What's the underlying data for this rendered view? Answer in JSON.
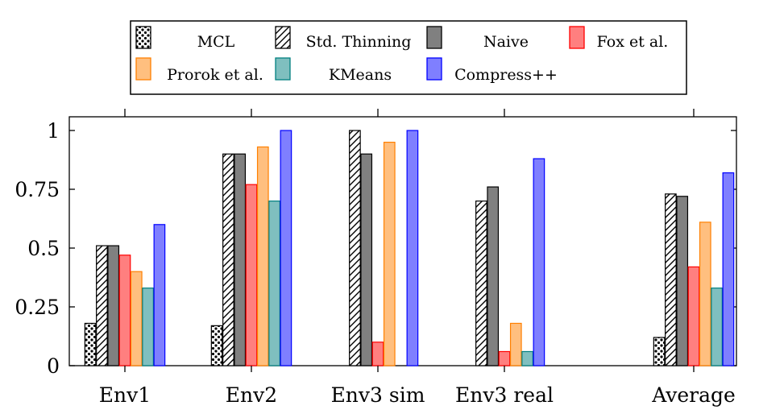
{
  "chart_data": {
    "type": "bar",
    "categories": [
      "Env1",
      "Env2",
      "Env3 sim",
      "Env3 real",
      "Average"
    ],
    "ylim": [
      0,
      1
    ],
    "yticks": [
      0,
      0.25,
      0.5,
      0.75,
      1
    ],
    "ytick_labels": [
      "0",
      "0.25",
      "0.5",
      "0.75",
      "1"
    ],
    "grid": false,
    "legend_position": "top",
    "series": [
      {
        "name": "MCL",
        "values": [
          0.18,
          0.17,
          0,
          0,
          0.12
        ],
        "color": "#ffffff",
        "fill": "dots",
        "stroke": "#000000"
      },
      {
        "name": "Std. Thinning",
        "values": [
          0.51,
          0.9,
          1.0,
          0.7,
          0.73
        ],
        "color": "#ffffff",
        "fill": "hatch",
        "stroke": "#000000"
      },
      {
        "name": "Naive",
        "values": [
          0.51,
          0.9,
          0.9,
          0.76,
          0.72
        ],
        "color": "#808080",
        "fill": "solid",
        "stroke": "#000000"
      },
      {
        "name": "Fox et al.",
        "values": [
          0.47,
          0.77,
          0.1,
          0.06,
          0.42
        ],
        "color": "#ff7f7f",
        "fill": "solid",
        "stroke": "#ff0000"
      },
      {
        "name": "Prorok et al.",
        "values": [
          0.4,
          0.93,
          0.95,
          0.18,
          0.61
        ],
        "color": "#ffbf7f",
        "fill": "solid",
        "stroke": "#ff8000"
      },
      {
        "name": "KMeans",
        "values": [
          0.33,
          0.7,
          0,
          0.06,
          0.33
        ],
        "color": "#7fbfbf",
        "fill": "solid",
        "stroke": "#008080"
      },
      {
        "name": "Compress++",
        "values": [
          0.6,
          1.0,
          1.0,
          0.88,
          0.82
        ],
        "color": "#7f7fff",
        "fill": "solid",
        "stroke": "#0000ff"
      }
    ]
  }
}
